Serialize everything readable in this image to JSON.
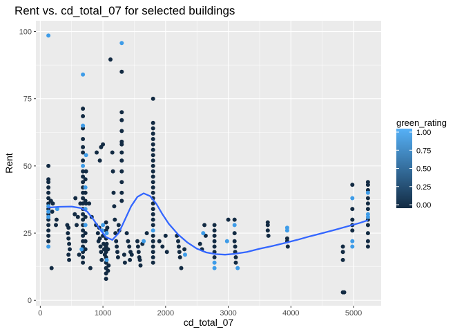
{
  "chart_data": {
    "type": "scatter",
    "title": "Rent vs. cd_total_07 for selected buildings",
    "xlabel": "cd_total_07",
    "ylabel": "Rent",
    "xlim": [
      -70,
      5440
    ],
    "ylim": [
      -2,
      104
    ],
    "xticks": [
      0,
      1000,
      2000,
      3000,
      4000,
      5000
    ],
    "yticks": [
      0,
      25,
      50,
      75,
      100
    ],
    "xtick_labels": [
      "0",
      "1000",
      "2000",
      "3000",
      "4000",
      "5000"
    ],
    "ytick_labels": [
      "0",
      "25",
      "50",
      "75",
      "100"
    ],
    "grid": true,
    "legend": {
      "title": "green_rating",
      "placement": "right",
      "labels": [
        "1.00",
        "0.75",
        "0.50",
        "0.25",
        "0.00"
      ],
      "low_color": "#132B43",
      "high_color": "#56B1F7"
    },
    "colors": {
      "panel": "#EBEBEB",
      "grid_major": "#FFFFFF",
      "smooth_line": "#3366FF",
      "dark_point": "#132B43",
      "light_point": "#3E9CE8"
    },
    "points": [
      [
        130,
        98.5,
        1
      ],
      [
        1300,
        95.7,
        1
      ],
      [
        680,
        84,
        1
      ],
      [
        1120,
        89.6,
        0
      ],
      [
        1300,
        85,
        0
      ],
      [
        680,
        71.3,
        0
      ],
      [
        680,
        68.5,
        0
      ],
      [
        680,
        65,
        1
      ],
      [
        680,
        64,
        0
      ],
      [
        1300,
        70,
        0
      ],
      [
        1300,
        67,
        0
      ],
      [
        1300,
        63,
        0
      ],
      [
        1300,
        59,
        0
      ],
      [
        1300,
        58,
        0
      ],
      [
        1300,
        55,
        0
      ],
      [
        1300,
        52,
        0
      ],
      [
        1300,
        48,
        0
      ],
      [
        1300,
        44,
        0
      ],
      [
        1300,
        40,
        0
      ],
      [
        1300,
        37,
        0
      ],
      [
        1800,
        75,
        0
      ],
      [
        1800,
        66,
        0
      ],
      [
        1800,
        64,
        0
      ],
      [
        1800,
        62,
        0
      ],
      [
        1800,
        60,
        0
      ],
      [
        1800,
        58,
        0
      ],
      [
        1800,
        56,
        0
      ],
      [
        1800,
        54,
        0
      ],
      [
        1800,
        52,
        0
      ],
      [
        1800,
        50,
        0
      ],
      [
        1800,
        48,
        0
      ],
      [
        1800,
        46,
        0
      ],
      [
        1800,
        44,
        0
      ],
      [
        1800,
        42,
        0
      ],
      [
        1800,
        40,
        0
      ],
      [
        1800,
        38,
        0
      ],
      [
        1800,
        36,
        0
      ],
      [
        1800,
        34,
        0
      ],
      [
        1800,
        32,
        0
      ],
      [
        1800,
        30,
        0
      ],
      [
        1800,
        28,
        0
      ],
      [
        1800,
        26,
        1
      ],
      [
        1800,
        24,
        0
      ],
      [
        1800,
        22,
        0
      ],
      [
        1800,
        20,
        0
      ],
      [
        1800,
        18,
        0
      ],
      [
        1800,
        16,
        0
      ],
      [
        1800,
        14,
        0
      ],
      [
        680,
        60,
        0
      ],
      [
        680,
        57,
        0
      ],
      [
        680,
        55,
        0
      ],
      [
        680,
        52,
        0
      ],
      [
        680,
        50,
        1
      ],
      [
        680,
        48,
        0
      ],
      [
        680,
        46,
        0
      ],
      [
        680,
        44,
        0
      ],
      [
        680,
        42,
        0
      ],
      [
        680,
        40,
        0
      ],
      [
        680,
        38,
        0
      ],
      [
        680,
        36,
        0
      ],
      [
        680,
        34,
        0
      ],
      [
        680,
        32,
        0
      ],
      [
        680,
        30,
        0
      ],
      [
        680,
        28,
        0
      ],
      [
        680,
        26,
        0
      ],
      [
        680,
        24,
        0
      ],
      [
        680,
        22,
        0
      ],
      [
        680,
        20,
        0
      ],
      [
        680,
        18,
        0
      ],
      [
        680,
        16,
        0
      ],
      [
        680,
        14,
        0
      ],
      [
        720,
        45,
        0
      ],
      [
        720,
        42,
        1
      ],
      [
        720,
        40,
        0
      ],
      [
        720,
        37,
        0
      ],
      [
        720,
        34,
        1
      ],
      [
        720,
        31,
        0
      ],
      [
        720,
        28,
        1
      ],
      [
        720,
        25,
        0
      ],
      [
        720,
        22,
        0
      ],
      [
        720,
        19,
        0
      ],
      [
        730,
        54,
        1
      ],
      [
        730,
        48,
        0
      ],
      [
        730,
        36,
        0
      ],
      [
        550,
        32,
        0
      ],
      [
        560,
        38,
        0
      ],
      [
        580,
        28,
        0
      ],
      [
        600,
        31,
        0
      ],
      [
        640,
        36,
        0
      ],
      [
        660,
        19,
        1
      ],
      [
        620,
        17,
        0
      ],
      [
        800,
        12,
        0
      ],
      [
        780,
        36,
        0
      ],
      [
        820,
        31,
        0
      ],
      [
        900,
        55,
        0
      ],
      [
        970,
        57,
        0
      ],
      [
        1000,
        58,
        0
      ],
      [
        950,
        52,
        0
      ],
      [
        890,
        28,
        0
      ],
      [
        920,
        25,
        0
      ],
      [
        930,
        22,
        0
      ],
      [
        940,
        27,
        0
      ],
      [
        950,
        23,
        0
      ],
      [
        960,
        20,
        0
      ],
      [
        970,
        18,
        0
      ],
      [
        980,
        15,
        0
      ],
      [
        990,
        26,
        1
      ],
      [
        1000,
        24,
        0
      ],
      [
        1010,
        21,
        0
      ],
      [
        1020,
        19,
        0
      ],
      [
        1030,
        17,
        0
      ],
      [
        1000,
        28,
        1
      ],
      [
        1050,
        29,
        0
      ],
      [
        1050,
        26,
        0
      ],
      [
        1050,
        23,
        0
      ],
      [
        1050,
        20,
        0
      ],
      [
        1050,
        18,
        0
      ],
      [
        1050,
        16,
        0
      ],
      [
        1050,
        14,
        0
      ],
      [
        1050,
        12,
        0
      ],
      [
        1050,
        10,
        0
      ],
      [
        1050,
        8,
        0
      ],
      [
        1060,
        25,
        1
      ],
      [
        1060,
        21,
        0
      ],
      [
        1060,
        15,
        1
      ],
      [
        1070,
        27,
        0
      ],
      [
        1080,
        19,
        0
      ],
      [
        1080,
        11,
        0
      ],
      [
        1090,
        13,
        0
      ],
      [
        130,
        50,
        0
      ],
      [
        130,
        45,
        0
      ],
      [
        130,
        44,
        0
      ],
      [
        130,
        42,
        0
      ],
      [
        130,
        40,
        0
      ],
      [
        130,
        38,
        0
      ],
      [
        130,
        36,
        0
      ],
      [
        130,
        34,
        0
      ],
      [
        130,
        32,
        0
      ],
      [
        130,
        30,
        0
      ],
      [
        130,
        28,
        0
      ],
      [
        130,
        26,
        0
      ],
      [
        130,
        24,
        0
      ],
      [
        130,
        22,
        0
      ],
      [
        130,
        20,
        1
      ],
      [
        130,
        35,
        1
      ],
      [
        130,
        33,
        1
      ],
      [
        130,
        31,
        1
      ],
      [
        170,
        37,
        0
      ],
      [
        180,
        12,
        0
      ],
      [
        190,
        33,
        0
      ],
      [
        200,
        36,
        0
      ],
      [
        250,
        28,
        0
      ],
      [
        260,
        30,
        0
      ],
      [
        270,
        34,
        1
      ],
      [
        430,
        28,
        0
      ],
      [
        440,
        25,
        0
      ],
      [
        450,
        23,
        0
      ],
      [
        460,
        21,
        0
      ],
      [
        470,
        19,
        0
      ],
      [
        450,
        17,
        0
      ],
      [
        460,
        15,
        0
      ],
      [
        450,
        27,
        0
      ],
      [
        1150,
        55,
        0
      ],
      [
        1160,
        48,
        0
      ],
      [
        1170,
        40,
        0
      ],
      [
        1180,
        35,
        0
      ],
      [
        1190,
        30,
        0
      ],
      [
        1200,
        25,
        0
      ],
      [
        1210,
        22,
        0
      ],
      [
        1220,
        20,
        0
      ],
      [
        1230,
        18,
        0
      ],
      [
        1240,
        16,
        0
      ],
      [
        1250,
        28,
        0
      ],
      [
        1260,
        26,
        0
      ],
      [
        1380,
        25,
        0
      ],
      [
        1400,
        22,
        0
      ],
      [
        1420,
        20,
        0
      ],
      [
        1440,
        18,
        0
      ],
      [
        1460,
        17,
        0
      ],
      [
        1430,
        15,
        0
      ],
      [
        1340,
        17,
        0
      ],
      [
        1350,
        14,
        0
      ],
      [
        1550,
        22,
        0
      ],
      [
        1560,
        20,
        0
      ],
      [
        1570,
        18,
        0
      ],
      [
        1580,
        16,
        0
      ],
      [
        1590,
        15,
        0
      ],
      [
        1600,
        13,
        0
      ],
      [
        1630,
        21,
        0
      ],
      [
        1650,
        22,
        1
      ],
      [
        1700,
        25,
        0
      ],
      [
        1900,
        22,
        0
      ],
      [
        1950,
        20,
        0
      ],
      [
        2000,
        24,
        0
      ],
      [
        2020,
        18,
        0
      ],
      [
        2180,
        24,
        0
      ],
      [
        2200,
        22,
        0
      ],
      [
        2210,
        20,
        0
      ],
      [
        2220,
        18,
        0
      ],
      [
        2230,
        16,
        0
      ],
      [
        2250,
        12,
        0
      ],
      [
        2300,
        19,
        0
      ],
      [
        2310,
        17,
        1
      ],
      [
        2550,
        21,
        0
      ],
      [
        2580,
        19,
        0
      ],
      [
        2600,
        25,
        1
      ],
      [
        2620,
        28,
        0
      ],
      [
        2640,
        24,
        0
      ],
      [
        2780,
        28,
        0
      ],
      [
        2780,
        26,
        0
      ],
      [
        2780,
        24,
        0
      ],
      [
        2780,
        22,
        0
      ],
      [
        2780,
        20,
        0
      ],
      [
        2780,
        18,
        0
      ],
      [
        2780,
        16,
        0
      ],
      [
        2780,
        14,
        1
      ],
      [
        2780,
        12,
        1
      ],
      [
        2980,
        22,
        1
      ],
      [
        3000,
        30,
        0
      ],
      [
        3100,
        30,
        0
      ],
      [
        3100,
        28,
        1
      ],
      [
        3100,
        25,
        0
      ],
      [
        3100,
        22,
        0
      ],
      [
        3110,
        20,
        0
      ],
      [
        3110,
        18,
        0
      ],
      [
        3120,
        16,
        0
      ],
      [
        3120,
        14,
        0
      ],
      [
        3150,
        12,
        1
      ],
      [
        3630,
        29,
        0
      ],
      [
        3630,
        28,
        0
      ],
      [
        3630,
        26,
        0
      ],
      [
        3640,
        24,
        0
      ],
      [
        3940,
        27,
        1
      ],
      [
        3940,
        26,
        1
      ],
      [
        3940,
        23,
        0
      ],
      [
        3940,
        22,
        0
      ],
      [
        3950,
        20,
        0
      ],
      [
        4830,
        20,
        0
      ],
      [
        4830,
        18,
        0
      ],
      [
        4830,
        15,
        0
      ],
      [
        4830,
        3,
        0
      ],
      [
        4850,
        3,
        0
      ],
      [
        4980,
        43,
        0
      ],
      [
        4980,
        38,
        1
      ],
      [
        4980,
        34,
        0
      ],
      [
        4980,
        30,
        0
      ],
      [
        4980,
        26,
        0
      ],
      [
        4980,
        22,
        1
      ],
      [
        4980,
        20,
        1
      ],
      [
        4980,
        28,
        0
      ],
      [
        5230,
        44,
        0
      ],
      [
        5230,
        43,
        0
      ],
      [
        5230,
        41,
        0
      ],
      [
        5230,
        40,
        1
      ],
      [
        5230,
        38,
        0
      ],
      [
        5230,
        36,
        0
      ],
      [
        5230,
        34,
        0
      ],
      [
        5230,
        32,
        1
      ],
      [
        5230,
        30,
        0
      ],
      [
        5230,
        28,
        0
      ],
      [
        5230,
        25,
        0
      ],
      [
        5230,
        22,
        0
      ],
      [
        5230,
        20,
        0
      ],
      [
        5230,
        31,
        1
      ]
    ],
    "smooth": {
      "x": [
        130,
        300,
        500,
        650,
        750,
        850,
        950,
        1050,
        1150,
        1250,
        1350,
        1450,
        1550,
        1650,
        1750,
        1850,
        1950,
        2050,
        2200,
        2350,
        2500,
        2650,
        2800,
        2950,
        3100,
        3300,
        3500,
        3700,
        3900,
        4100,
        4300,
        4500,
        4700,
        4900,
        5100,
        5230
      ],
      "y": [
        34.5,
        34.8,
        34.9,
        34.3,
        33,
        30,
        26.5,
        23.5,
        22.5,
        25,
        30,
        35,
        38.5,
        39.8,
        38.8,
        36,
        32,
        28.5,
        24.5,
        21.5,
        19.2,
        17.8,
        17.2,
        17.0,
        17.3,
        18.0,
        19.2,
        20.2,
        21.3,
        22.5,
        23.8,
        25.0,
        26.2,
        27.5,
        28.8,
        29.8
      ]
    }
  }
}
